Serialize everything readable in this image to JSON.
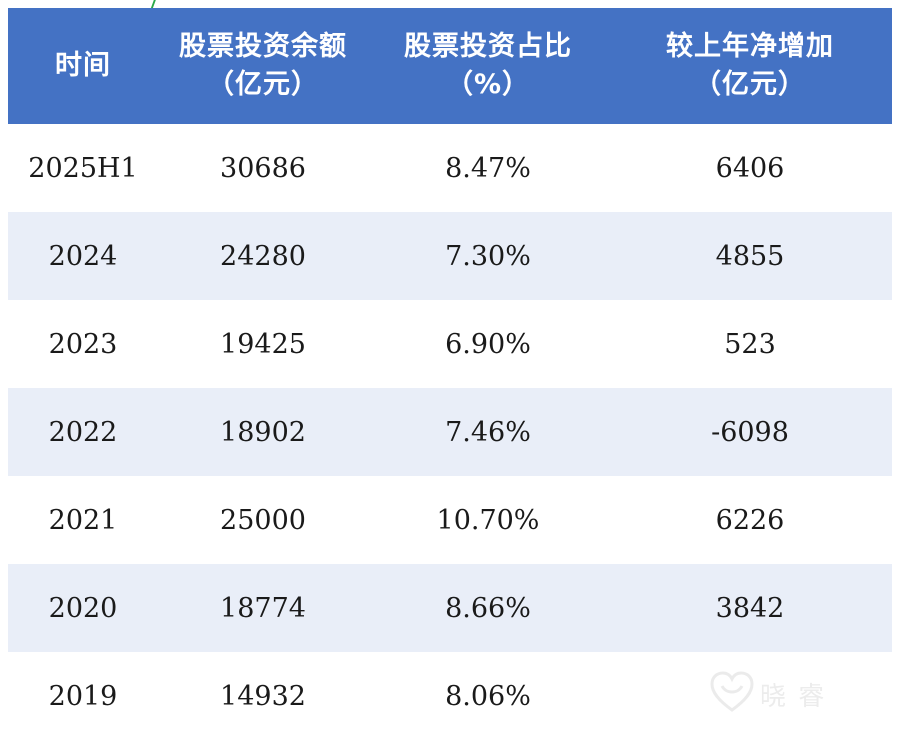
{
  "chart_data": {
    "type": "table",
    "columns": [
      {
        "line1": "时间",
        "line2": ""
      },
      {
        "line1": "股票投资余额",
        "line2": "（亿元）"
      },
      {
        "line1": "股票投资占比",
        "line2": "（%）"
      },
      {
        "line1": "较上年净增加",
        "line2": "（亿元）"
      }
    ],
    "rows": [
      {
        "period": "2025H1",
        "balance": "30686",
        "ratio": "8.47%",
        "increase": "6406"
      },
      {
        "period": "2024",
        "balance": "24280",
        "ratio": "7.30%",
        "increase": "4855"
      },
      {
        "period": "2023",
        "balance": "19425",
        "ratio": "6.90%",
        "increase": "523"
      },
      {
        "period": "2022",
        "balance": "18902",
        "ratio": "7.46%",
        "increase": "-6098"
      },
      {
        "period": "2021",
        "balance": "25000",
        "ratio": "10.70%",
        "increase": "6226"
      },
      {
        "period": "2020",
        "balance": "18774",
        "ratio": "8.66%",
        "increase": "3842"
      },
      {
        "period": "2019",
        "balance": "14932",
        "ratio": "8.06%",
        "increase": ""
      }
    ],
    "colors": {
      "header_bg": "#4472c4",
      "header_text": "#ffffff",
      "band_bg": "#e9eef8",
      "row_bg": "#ffffff"
    }
  },
  "watermark": {
    "text": "晓  睿"
  }
}
